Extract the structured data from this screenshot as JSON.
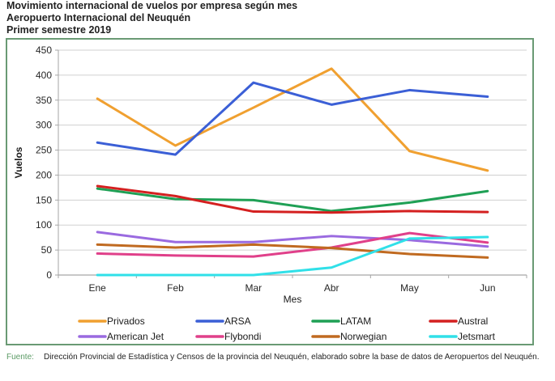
{
  "header": {
    "title_line1": "Movimiento internacional de vuelos por empresa según mes",
    "title_line2": "Aeropuerto Internacional del Neuquén",
    "title_line3": "Primer semestre 2019"
  },
  "source": {
    "label": "Fuente:",
    "text": "Dirección Provincial de Estadística y Censos de la provincia del Neuquén, elaborado sobre la base de datos de Aeropuertos del Neuquén."
  },
  "colors": {
    "frame": "#6a9a74",
    "grid": "#d0d0d0",
    "axis": "#a6a6a6"
  },
  "chart_data": {
    "type": "line",
    "title": "Movimiento internacional de vuelos por empresa según mes",
    "xlabel": "Mes",
    "ylabel": "Vuelos",
    "categories": [
      "Ene",
      "Feb",
      "Mar",
      "Abr",
      "May",
      "Jun"
    ],
    "ylim": [
      0,
      450
    ],
    "yticks": [
      0,
      50,
      100,
      150,
      200,
      250,
      300,
      350,
      400,
      450
    ],
    "grid": true,
    "legend_position": "bottom",
    "series": [
      {
        "name": "Privados",
        "color": "#f0a030",
        "values": [
          353,
          259,
          335,
          413,
          248,
          209
        ]
      },
      {
        "name": "ARSA",
        "color": "#3b5fd6",
        "values": [
          265,
          241,
          385,
          341,
          370,
          357
        ]
      },
      {
        "name": "LATAM",
        "color": "#1fa055",
        "values": [
          173,
          152,
          150,
          128,
          145,
          168
        ]
      },
      {
        "name": "Austral",
        "color": "#d42020",
        "values": [
          178,
          158,
          127,
          125,
          128,
          126
        ]
      },
      {
        "name": "American Jet",
        "color": "#9a6ae0",
        "values": [
          86,
          66,
          66,
          78,
          70,
          57
        ]
      },
      {
        "name": "Flybondi",
        "color": "#e0408a",
        "values": [
          43,
          39,
          37,
          55,
          84,
          65
        ]
      },
      {
        "name": "Norwegian",
        "color": "#c06a20",
        "values": [
          61,
          55,
          61,
          54,
          42,
          35
        ]
      },
      {
        "name": "Jetsmart",
        "color": "#30e0e8",
        "values": [
          0,
          0,
          0,
          15,
          73,
          76
        ]
      }
    ]
  }
}
